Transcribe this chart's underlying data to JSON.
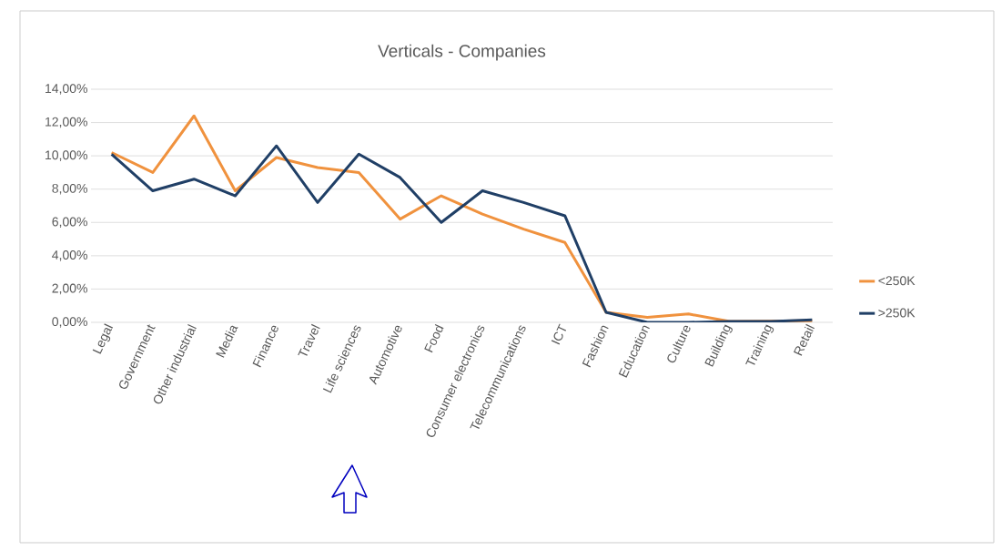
{
  "chart_data": {
    "type": "line",
    "title": "Verticals - Companies",
    "categories": [
      "Legal",
      "Government",
      "Other industrial",
      "Media",
      "Finance",
      "Travel",
      "Life sciences",
      "Automotive",
      "Food",
      "Consumer electronics",
      "Telecommunications",
      "ICT",
      "Fashion",
      "Education",
      "Culture",
      "Building",
      "Training",
      "Retail"
    ],
    "series": [
      {
        "name": "<250K",
        "color": "#f0923e",
        "values": [
          10.2,
          9.0,
          12.4,
          7.9,
          9.9,
          9.3,
          9.0,
          6.2,
          7.6,
          6.5,
          5.6,
          4.8,
          0.6,
          0.3,
          0.5,
          0.05,
          null,
          0.1
        ]
      },
      {
        "name": ">250K",
        "color": "#203f66",
        "values": [
          10.1,
          7.9,
          8.6,
          7.6,
          10.6,
          7.2,
          10.1,
          8.7,
          6.0,
          7.9,
          7.2,
          6.4,
          0.6,
          0.0,
          0.0,
          0.05,
          0.05,
          0.15
        ]
      }
    ],
    "ylim": [
      0,
      14
    ],
    "yticks": [
      {
        "value": 0,
        "label": "0,00%"
      },
      {
        "value": 2,
        "label": "2,00%"
      },
      {
        "value": 4,
        "label": "4,00%"
      },
      {
        "value": 6,
        "label": "6,00%"
      },
      {
        "value": 8,
        "label": "8,00%"
      },
      {
        "value": 10,
        "label": "10,00%"
      },
      {
        "value": 12,
        "label": "12,00%"
      },
      {
        "value": 14,
        "label": "14,00%"
      }
    ],
    "grid": "y",
    "legend": "right",
    "line_style": "solid"
  }
}
